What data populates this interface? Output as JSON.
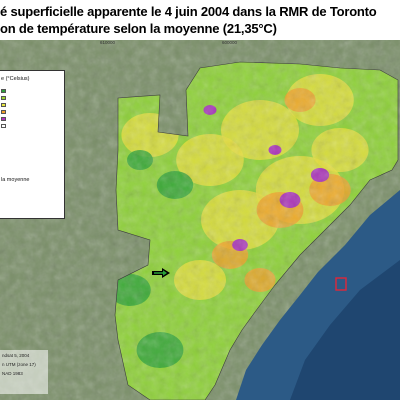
{
  "title": {
    "line1": "é superficielle apparente le 4 juin 2004 dans la RMR de Toronto",
    "line2": "on de température selon la moyenne (21,35°C)"
  },
  "grid_labels": {
    "top_left": "610000",
    "top_right": "600000"
  },
  "legend": {
    "title": "e (°Celsius)",
    "mean_label": "la moyenne",
    "colors": [
      "#2e9e3c",
      "#9bd22f",
      "#e8e640",
      "#f2a02a",
      "#b02fc0",
      "#ffffff"
    ]
  },
  "credits": {
    "lines": [
      "ndsat 5, 2004",
      "n UTM (zone 17)",
      "NAD 1983"
    ]
  },
  "map": {
    "colors": {
      "water": "#2c5a86",
      "water_deep": "#1f4670",
      "farmland": "#7a8f68",
      "cool": "#2aa13a",
      "mild": "#8fd13a",
      "warm": "#e6df3e",
      "hot": "#f0a02c",
      "very_hot": "#a82ec0",
      "extreme": "#e0263a"
    }
  }
}
